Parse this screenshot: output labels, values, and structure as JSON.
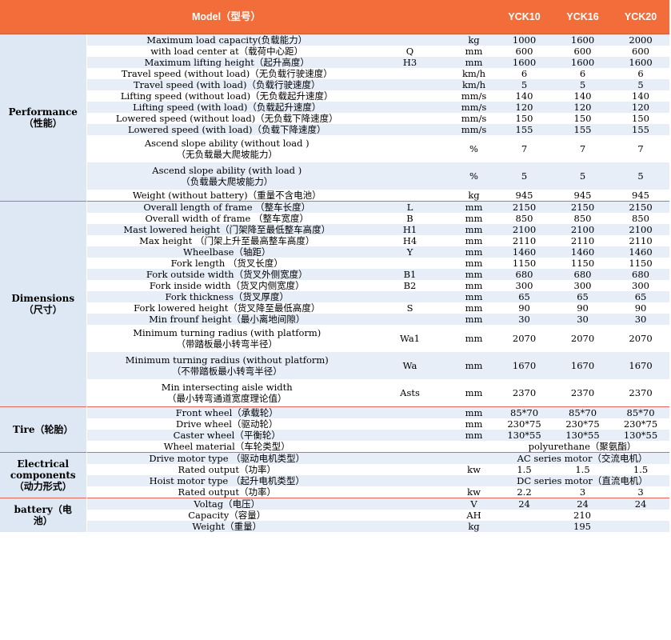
{
  "header": {
    "model_label": "Model（型号）",
    "models": [
      "YCK10",
      "YCK16",
      "YCK20"
    ]
  },
  "colors": {
    "header_bg": "#f36d3b",
    "section_divider": "#e4665b",
    "category_bg": "#dde8f4",
    "row_band": "#e7eef8"
  },
  "sections": [
    {
      "category": [
        "Performance",
        "（性能）"
      ],
      "rows": [
        {
          "desc": [
            "Maximum load capacity(负载能力）"
          ],
          "sym": "",
          "unit": "kg",
          "v": [
            "1000",
            "1600",
            "2000"
          ]
        },
        {
          "desc": [
            "with load center at（载荷中心距）"
          ],
          "sym": "Q",
          "unit": "mm",
          "v": [
            "600",
            "600",
            "600"
          ]
        },
        {
          "desc": [
            "Maximum lifting height（起升高度）"
          ],
          "sym": "H3",
          "unit": "mm",
          "v": [
            "1600",
            "1600",
            "1600"
          ]
        },
        {
          "desc": [
            "Travel speed (without load)（无负载行驶速度）"
          ],
          "sym": "",
          "unit": "km/h",
          "v": [
            "6",
            "6",
            "6"
          ]
        },
        {
          "desc": [
            "Travel speed (with load)（负载行驶速度）"
          ],
          "sym": "",
          "unit": "km/h",
          "v": [
            "5",
            "5",
            "5"
          ]
        },
        {
          "desc": [
            "Lifting speed (without load)（无负载起升速度）"
          ],
          "sym": "",
          "unit": "mm/s",
          "v": [
            "140",
            "140",
            "140"
          ]
        },
        {
          "desc": [
            "Lifting speed (with load)（负载起升速度）"
          ],
          "sym": "",
          "unit": "mm/s",
          "v": [
            "120",
            "120",
            "120"
          ]
        },
        {
          "desc": [
            "Lowered speed (without load)（无负载下降速度）"
          ],
          "sym": "",
          "unit": "mm/s",
          "v": [
            "150",
            "150",
            "150"
          ]
        },
        {
          "desc": [
            "Lowered speed (with load)（负载下降速度）"
          ],
          "sym": "",
          "unit": "mm/s",
          "v": [
            "155",
            "155",
            "155"
          ]
        },
        {
          "desc": [
            "Ascend slope ability (without load )",
            "（无负载最大爬坡能力）"
          ],
          "sym": "",
          "unit": "%",
          "v": [
            "7",
            "7",
            "7"
          ]
        },
        {
          "desc": [
            "Ascend slope ability (with load )",
            "（负载最大爬坡能力）"
          ],
          "sym": "",
          "unit": "%",
          "v": [
            "5",
            "5",
            "5"
          ]
        },
        {
          "desc": [
            "Weight (without battery)（重量不含电池）"
          ],
          "sym": "",
          "unit": "kg",
          "v": [
            "945",
            "945",
            "945"
          ]
        }
      ]
    },
    {
      "category": [
        "Dimensions",
        "（尺寸）"
      ],
      "rows": [
        {
          "desc": [
            "Overall length of frame （整车长度）"
          ],
          "sym": "L",
          "unit": "mm",
          "v": [
            "2150",
            "2150",
            "2150"
          ]
        },
        {
          "desc": [
            "Overall width of frame （整车宽度）"
          ],
          "sym": "B",
          "unit": "mm",
          "v": [
            "850",
            "850",
            "850"
          ]
        },
        {
          "desc": [
            "Mast lowered height（门架降至最低整车高度）"
          ],
          "sym": "H1",
          "unit": "mm",
          "v": [
            "2100",
            "2100",
            "2100"
          ]
        },
        {
          "desc": [
            "Max height （门架上升至最高整车高度）"
          ],
          "sym": "H4",
          "unit": "mm",
          "v": [
            "2110",
            "2110",
            "2110"
          ]
        },
        {
          "desc": [
            "Wheelbase（轴距）"
          ],
          "sym": "Y",
          "unit": "mm",
          "v": [
            "1460",
            "1460",
            "1460"
          ]
        },
        {
          "desc": [
            "Fork length （货叉长度）"
          ],
          "sym": "",
          "unit": "mm",
          "v": [
            "1150",
            "1150",
            "1150"
          ]
        },
        {
          "desc": [
            "Fork outside width（货叉外侧宽度）"
          ],
          "sym": "B1",
          "unit": "mm",
          "v": [
            "680",
            "680",
            "680"
          ]
        },
        {
          "desc": [
            "Fork inside width（货叉内侧宽度）"
          ],
          "sym": "B2",
          "unit": "mm",
          "v": [
            "300",
            "300",
            "300"
          ]
        },
        {
          "desc": [
            "Fork thickness（货叉厚度）"
          ],
          "sym": "",
          "unit": "mm",
          "v": [
            "65",
            "65",
            "65"
          ]
        },
        {
          "desc": [
            "Fork lowered height（货叉降至最低高度）"
          ],
          "sym": "S",
          "unit": "mm",
          "v": [
            "90",
            "90",
            "90"
          ]
        },
        {
          "desc": [
            "Min frounf height（最小离地间隙）"
          ],
          "sym": "",
          "unit": "mm",
          "v": [
            "30",
            "30",
            "30"
          ]
        },
        {
          "desc": [
            "Minimum turning radius (with platform)",
            "（带踏板最小转弯半径）"
          ],
          "sym": "Wa1",
          "unit": "mm",
          "v": [
            "2070",
            "2070",
            "2070"
          ]
        },
        {
          "desc": [
            "Minimum turning radius (without platform)",
            "（不带踏板最小转弯半径）"
          ],
          "sym": "Wa",
          "unit": "mm",
          "v": [
            "1670",
            "1670",
            "1670"
          ]
        },
        {
          "desc": [
            "Min intersecting aisle width",
            "（最小转弯通道宽度理论值）"
          ],
          "sym": "Asts",
          "unit": "mm",
          "v": [
            "2370",
            "2370",
            "2370"
          ]
        }
      ]
    },
    {
      "category": [
        "Tire（轮胎）"
      ],
      "rows": [
        {
          "desc": [
            "Front wheel（承载轮）"
          ],
          "sym": "",
          "unit": "mm",
          "v": [
            "85*70",
            "85*70",
            "85*70"
          ]
        },
        {
          "desc": [
            "Drive wheel（驱动轮）"
          ],
          "sym": "",
          "unit": "mm",
          "v": [
            "230*75",
            "230*75",
            "230*75"
          ]
        },
        {
          "desc": [
            "Caster wheel（平衡轮）"
          ],
          "sym": "",
          "unit": "mm",
          "v": [
            "130*55",
            "130*55",
            "130*55"
          ]
        },
        {
          "desc": [
            "Wheel material（车轮类型）"
          ],
          "sym": "",
          "unit": "",
          "span": "polyurethane（聚氨酯）"
        }
      ]
    },
    {
      "category": [
        "Electrical",
        "components",
        "（动力形式）"
      ],
      "rows": [
        {
          "desc": [
            "Drive motor type （驱动电机类型）"
          ],
          "sym": "",
          "unit": "",
          "span": "AC series motor（交流电机）"
        },
        {
          "desc": [
            "Rated output（功率）"
          ],
          "sym": "",
          "unit": "kw",
          "v": [
            "1.5",
            "1.5",
            "1.5"
          ]
        },
        {
          "desc": [
            "Hoist motor type （起升电机类型）"
          ],
          "sym": "",
          "unit": "",
          "span": "DC series motor（直流电机）"
        },
        {
          "desc": [
            "Rated output（功率）"
          ],
          "sym": "",
          "unit": "kw",
          "v": [
            "2.2",
            "3",
            "3"
          ]
        }
      ]
    },
    {
      "category": [
        "battery（电",
        "池）"
      ],
      "rows": [
        {
          "desc": [
            "Voltag（电压）"
          ],
          "sym": "",
          "unit": "V",
          "v": [
            "24",
            "24",
            "24"
          ]
        },
        {
          "desc": [
            "Capacity（容量）"
          ],
          "sym": "",
          "unit": "AH",
          "span": "210"
        },
        {
          "desc": [
            "Weight（重量）"
          ],
          "sym": "",
          "unit": "kg",
          "span": "195"
        }
      ]
    }
  ]
}
